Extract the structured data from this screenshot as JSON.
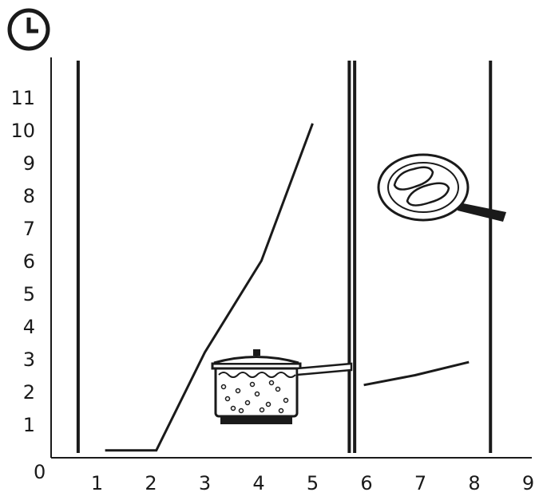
{
  "chart_data": {
    "type": "line",
    "title": "",
    "xlabel": "",
    "ylabel_icon": "clock-icon",
    "xlim": [
      0,
      9
    ],
    "ylim": [
      0,
      11
    ],
    "grid": false,
    "origin_label": "0",
    "x_ticks": [
      "1",
      "2",
      "3",
      "4",
      "5",
      "6",
      "7",
      "8",
      "9"
    ],
    "y_ticks": [
      "1",
      "2",
      "3",
      "4",
      "5",
      "6",
      "7",
      "8",
      "9",
      "10",
      "11"
    ],
    "series": [
      {
        "x": [
          1.15,
          2.1,
          3.0,
          4.05,
          5.0
        ],
        "y": [
          0.2,
          0.2,
          3.2,
          6.0,
          10.2
        ]
      },
      {
        "x": [
          5.95,
          6.9,
          7.9
        ],
        "y": [
          2.2,
          2.5,
          2.9
        ]
      }
    ],
    "vertical_lines": [
      0.65,
      5.68,
      5.78,
      8.3
    ],
    "illustrations": [
      "boiling-pot-on-burner",
      "frying-pan-with-two-steaks"
    ],
    "color": "#1a1a1a"
  }
}
